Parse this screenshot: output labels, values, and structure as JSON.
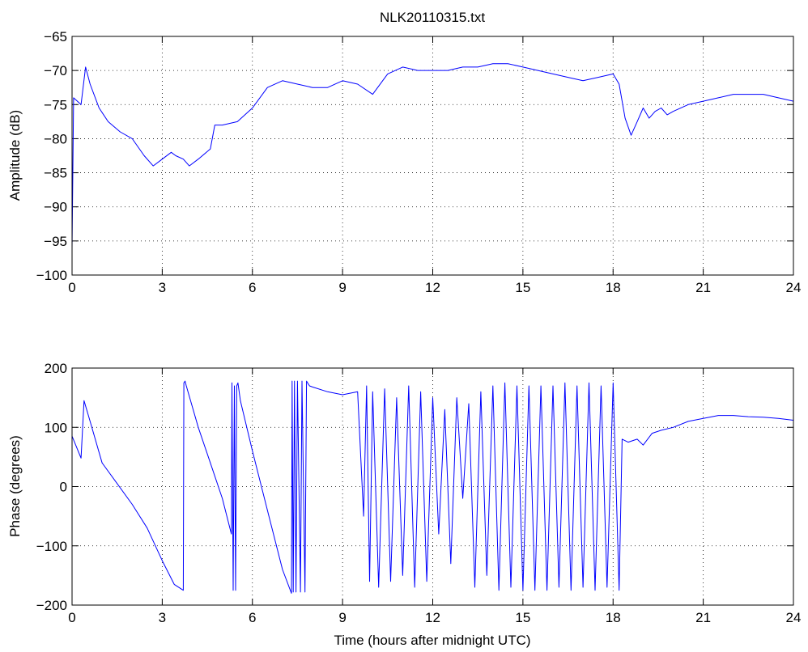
{
  "figure_title": "NLK20110315.txt",
  "chart_data": [
    {
      "type": "line",
      "title": "NLK20110315.txt",
      "xlabel": "",
      "ylabel": "Amplitude (dB)",
      "xlim": [
        0,
        24
      ],
      "ylim": [
        -100,
        -65
      ],
      "xticks": [
        0,
        3,
        6,
        9,
        12,
        15,
        18,
        21,
        24
      ],
      "yticks": [
        -100,
        -95,
        -90,
        -85,
        -80,
        -75,
        -70,
        -65
      ],
      "grid": true,
      "color": "#0000ff",
      "series": [
        {
          "x": [
            0,
            0.05,
            0.3,
            0.45,
            0.6,
            0.9,
            1.2,
            1.6,
            2.0,
            2.4,
            2.7,
            3.0,
            3.3,
            3.45,
            3.7,
            3.9,
            4.2,
            4.6,
            4.75,
            5.0,
            5.5,
            6.0,
            6.5,
            7.0,
            7.5,
            8.0,
            8.5,
            9.0,
            9.5,
            10.0,
            10.5,
            11.0,
            11.5,
            12.0,
            12.5,
            13.0,
            13.5,
            14.0,
            14.5,
            15.0,
            15.5,
            16.0,
            16.5,
            17.0,
            17.5,
            18.0,
            18.2,
            18.4,
            18.6,
            18.8,
            19.0,
            19.2,
            19.4,
            19.6,
            19.8,
            20.0,
            20.5,
            21.0,
            21.5,
            22.0,
            22.5,
            23.0,
            23.5,
            24.0
          ],
          "y": [
            -96,
            -74,
            -75,
            -69.5,
            -72,
            -75.5,
            -77.5,
            -79,
            -80,
            -82.5,
            -84,
            -83,
            -82,
            -82.5,
            -83,
            -84,
            -83,
            -81.5,
            -78,
            -78,
            -77.5,
            -75.5,
            -72.5,
            -71.5,
            -72,
            -72.5,
            -72.5,
            -71.5,
            -72,
            -73.5,
            -70.5,
            -69.5,
            -70,
            -70,
            -70,
            -69.5,
            -69.5,
            -69,
            -69,
            -69.5,
            -70,
            -70.5,
            -71,
            -71.5,
            -71,
            -70.5,
            -72,
            -77,
            -79.5,
            -77.5,
            -75.5,
            -77,
            -76,
            -75.5,
            -76.5,
            -76,
            -75,
            -74.5,
            -74,
            -73.5,
            -73.5,
            -73.5,
            -74,
            -74.5
          ]
        }
      ]
    },
    {
      "type": "line",
      "title": "",
      "xlabel": "Time (hours after midnight UTC)",
      "ylabel": "Phase (degrees)",
      "xlim": [
        0,
        24
      ],
      "ylim": [
        -200,
        200
      ],
      "xticks": [
        0,
        3,
        6,
        9,
        12,
        15,
        18,
        21,
        24
      ],
      "yticks": [
        -200,
        -100,
        0,
        100,
        200
      ],
      "grid": true,
      "color": "#0000ff",
      "series": [
        {
          "x": [
            0,
            0.3,
            0.4,
            0.6,
            1.0,
            1.5,
            2.0,
            2.5,
            3.0,
            3.4,
            3.7,
            3.72,
            3.76,
            3.8,
            4.2,
            4.6,
            5.0,
            5.3,
            5.32,
            5.36,
            5.4,
            5.44,
            5.48,
            5.52,
            5.6,
            6.0,
            6.5,
            7.0,
            7.3,
            7.32,
            7.36,
            7.4,
            7.45,
            7.5,
            7.6,
            7.65,
            7.75,
            7.8,
            7.9,
            8.0,
            8.5,
            9.0,
            9.5,
            9.7,
            9.8,
            9.9,
            10.0,
            10.2,
            10.4,
            10.6,
            10.8,
            11.0,
            11.2,
            11.4,
            11.6,
            11.8,
            12.0,
            12.2,
            12.4,
            12.6,
            12.8,
            13.0,
            13.2,
            13.4,
            13.6,
            13.8,
            14.0,
            14.2,
            14.4,
            14.6,
            14.8,
            15.0,
            15.2,
            15.4,
            15.6,
            15.8,
            16.0,
            16.2,
            16.4,
            16.6,
            16.8,
            17.0,
            17.2,
            17.4,
            17.6,
            17.8,
            18.0,
            18.2,
            18.3,
            18.5,
            18.8,
            19.0,
            19.3,
            19.6,
            20.0,
            20.5,
            21.0,
            21.5,
            22.0,
            22.5,
            23.0,
            23.5,
            24.0
          ],
          "y": [
            85,
            48,
            145,
            110,
            40,
            5,
            -30,
            -70,
            -125,
            -165,
            -175,
            175,
            178,
            170,
            100,
            40,
            -20,
            -80,
            175,
            -175,
            170,
            -175,
            170,
            175,
            145,
            60,
            -40,
            -140,
            -180,
            178,
            -178,
            178,
            -178,
            178,
            -178,
            178,
            -178,
            178,
            170,
            168,
            160,
            155,
            160,
            -50,
            170,
            -160,
            160,
            -170,
            165,
            -160,
            150,
            -150,
            170,
            -170,
            160,
            -160,
            150,
            -80,
            130,
            -130,
            150,
            -20,
            140,
            -170,
            160,
            -150,
            170,
            -175,
            175,
            -170,
            170,
            -175,
            170,
            -175,
            170,
            -175,
            170,
            -170,
            175,
            -175,
            170,
            -170,
            175,
            -175,
            170,
            -170,
            175,
            -175,
            80,
            75,
            80,
            70,
            90,
            95,
            100,
            110,
            115,
            120,
            120,
            118,
            117,
            115,
            112
          ]
        }
      ]
    }
  ]
}
